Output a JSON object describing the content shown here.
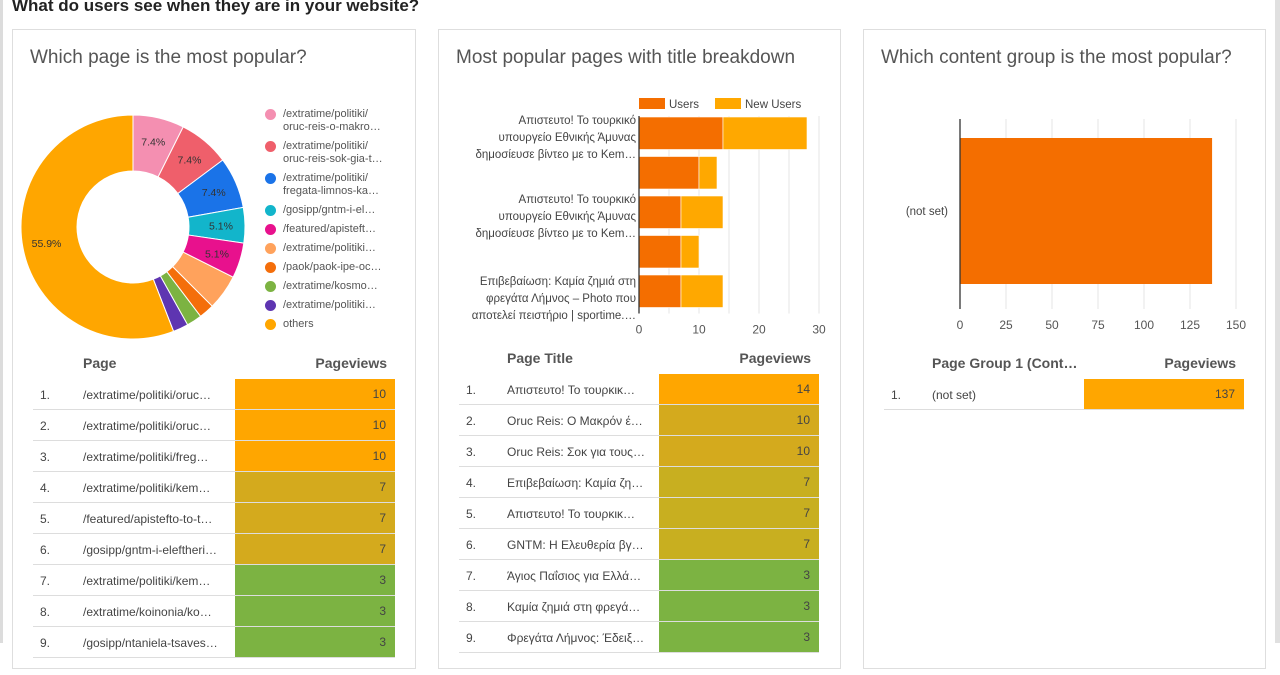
{
  "section_title": "What do users see when they are in your website?",
  "colors": {
    "users": "#f46e00",
    "new_users": "#ffa800",
    "heat_high": "#ffa600",
    "heat_mid_high": "#d4aa1d",
    "heat_mid": "#c8af20",
    "heat_mid_low": "#b2b22c",
    "heat_low": "#7cb342"
  },
  "cards": [
    {
      "title": "Which page is the most popular?",
      "table": {
        "col_label": "Page",
        "col_value": "Pageviews",
        "rows": [
          {
            "n": "1.",
            "label": "/extratime/politiki/oruc…",
            "value": "10"
          },
          {
            "n": "2.",
            "label": "/extratime/politiki/oruc…",
            "value": "10"
          },
          {
            "n": "3.",
            "label": "/extratime/politiki/freg…",
            "value": "10"
          },
          {
            "n": "4.",
            "label": "/extratime/politiki/kem…",
            "value": "7"
          },
          {
            "n": "5.",
            "label": "/featured/apistefto-to-t…",
            "value": "7"
          },
          {
            "n": "6.",
            "label": "/gosipp/gntm-i-eleftheri…",
            "value": "7"
          },
          {
            "n": "7.",
            "label": "/extratime/politiki/kem…",
            "value": "3"
          },
          {
            "n": "8.",
            "label": "/extratime/koinonia/ko…",
            "value": "3"
          },
          {
            "n": "9.",
            "label": "/gosipp/ntaniela-tsaves…",
            "value": "3"
          }
        ]
      }
    },
    {
      "title": "Most popular pages with title breakdown",
      "table": {
        "col_label": "Page Title",
        "col_value": "Pageviews",
        "rows": [
          {
            "n": "1.",
            "label": "Απιστευτο! Το τουρκικ…",
            "value": "14"
          },
          {
            "n": "2.",
            "label": "Oruc Reis: Ο Μακρόν έ…",
            "value": "10"
          },
          {
            "n": "3.",
            "label": "Oruc Reis: Σοκ για τους…",
            "value": "10"
          },
          {
            "n": "4.",
            "label": "Επιβεβαίωση: Καμία ζη…",
            "value": "7"
          },
          {
            "n": "5.",
            "label": "Απιστευτο! Το τουρκικ…",
            "value": "7"
          },
          {
            "n": "6.",
            "label": "GNTM: Η Ελευθερία βγ…",
            "value": "7"
          },
          {
            "n": "7.",
            "label": "Άγιος Παΐσιος για Ελλά…",
            "value": "3"
          },
          {
            "n": "8.",
            "label": "Καμία ζημιά στη φρεγά…",
            "value": "3"
          },
          {
            "n": "9.",
            "label": "Φρεγάτα Λήμνος: Έδειξ…",
            "value": "3"
          }
        ]
      }
    },
    {
      "title": "Which content group is the most popular?",
      "table": {
        "col_label": "Page Group 1 (Cont…",
        "col_value": "Pageviews",
        "rows": [
          {
            "n": "1.",
            "label": "(not set)",
            "value": "137"
          }
        ]
      }
    }
  ],
  "chart_data": [
    {
      "type": "pie",
      "title": "Which page is the most popular?",
      "donut": true,
      "legend_position": "right",
      "slices": [
        {
          "label": "/extratime/politiki/oruc-reis-o-makro…",
          "value": 7.4,
          "color": "#f48fb1",
          "show_label": "7.4%"
        },
        {
          "label": "/extratime/politiki/oruc-reis-sok-gia-t…",
          "value": 7.4,
          "color": "#ef5f6b",
          "show_label": "7.4%"
        },
        {
          "label": "/extratime/politiki/fregata-limnos-ka…",
          "value": 7.4,
          "color": "#1a73e8",
          "show_label": "7.4%"
        },
        {
          "label": "/gosipp/gntm-i-el…",
          "value": 5.1,
          "color": "#12b5cb",
          "show_label": "5.1%"
        },
        {
          "label": "/featured/apisteft…",
          "value": 5.1,
          "color": "#e8118d",
          "show_label": "5.1%"
        },
        {
          "label": "/extratime/politiki…",
          "value": 5.1,
          "color": "#ffa25c",
          "show_label": ""
        },
        {
          "label": "/paok/paok-ipe-oc…",
          "value": 2.2,
          "color": "#f46e0b",
          "show_label": ""
        },
        {
          "label": "/extratime/kosmo…",
          "value": 2.2,
          "color": "#7cb342",
          "show_label": ""
        },
        {
          "label": "/extratime/politiki…",
          "value": 2.2,
          "color": "#5e35b1",
          "show_label": ""
        },
        {
          "label": "others",
          "value": 55.9,
          "color": "#ffa600",
          "show_label": "55.9%"
        }
      ],
      "legend": [
        {
          "line1": "/extratime/politiki/",
          "line2": "oruc-reis-o-makro…"
        },
        {
          "line1": "/extratime/politiki/",
          "line2": "oruc-reis-sok-gia-t…"
        },
        {
          "line1": "/extratime/politiki/",
          "line2": "fregata-limnos-ka…"
        },
        {
          "line1": "/gosipp/gntm-i-el…",
          "line2": ""
        },
        {
          "line1": "/featured/apisteft…",
          "line2": ""
        },
        {
          "line1": "/extratime/politiki…",
          "line2": ""
        },
        {
          "line1": "/paok/paok-ipe-oc…",
          "line2": ""
        },
        {
          "line1": "/extratime/kosmo…",
          "line2": ""
        },
        {
          "line1": "/extratime/politiki…",
          "line2": ""
        },
        {
          "line1": "others",
          "line2": ""
        }
      ]
    },
    {
      "type": "bar",
      "orientation": "horizontal",
      "stacked": true,
      "title": "Most popular pages with title breakdown",
      "legend_position": "top",
      "categories": [
        [
          "Απιστευτο! Το τουρκικό",
          "υπουργείο Εθνικής Άμυνας",
          "δημοσίευσε βίντεο με το Kem…"
        ],
        [],
        [
          "Απιστευτο! Το τουρκικό",
          "υπουργείο Εθνικής Άμυνας",
          "δημοσίευσε βίντεο με το Kem…"
        ],
        [],
        [
          "Επιβεβαίωση: Καμία ζημιά στη",
          "φρεγάτα Λήμνος – Photo που",
          "αποτελεί πειστήριο | sportime.…"
        ]
      ],
      "series": [
        {
          "name": "Users",
          "values": [
            14,
            10,
            7,
            7,
            7
          ]
        },
        {
          "name": "New Users",
          "values": [
            14,
            3,
            7,
            3,
            7
          ]
        }
      ],
      "xlim": [
        0,
        30
      ],
      "xticks": [
        "0",
        "10",
        "20",
        "30"
      ],
      "grid": true
    },
    {
      "type": "bar",
      "orientation": "horizontal",
      "title": "Which content group is the most popular?",
      "categories": [
        "(not set)"
      ],
      "values": [
        137
      ],
      "xlim": [
        0,
        150
      ],
      "xticks": [
        "0",
        "25",
        "50",
        "75",
        "100",
        "125",
        "150"
      ],
      "grid": true
    }
  ]
}
